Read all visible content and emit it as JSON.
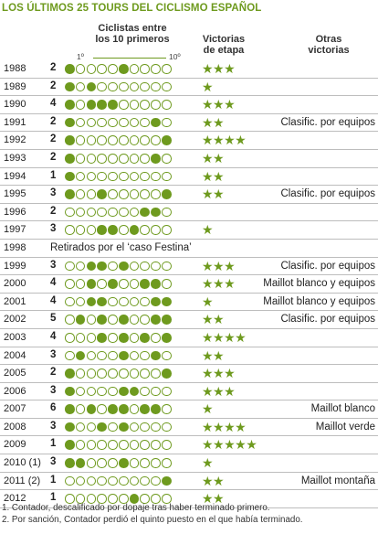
{
  "title": "LOS ÚLTIMOS 25 TOURS DEL CICLISMO ESPAÑOL",
  "headers": {
    "cyclists": "Ciclistas entre\nlos 10 primeros",
    "scale_first": "1º",
    "scale_last": "10º",
    "stage_wins": "Victorias\nde etapa",
    "other_wins": "Otras\nvictorias"
  },
  "rows": [
    {
      "year": "1988",
      "count": "2",
      "positions": [
        1,
        6
      ],
      "stars": "★★★",
      "other": ""
    },
    {
      "year": "1989",
      "count": "2",
      "positions": [
        1,
        3
      ],
      "stars": "★",
      "other": ""
    },
    {
      "year": "1990",
      "count": "4",
      "positions": [
        1,
        3,
        4,
        5
      ],
      "stars": "★★★",
      "other": ""
    },
    {
      "year": "1991",
      "count": "2",
      "positions": [
        1,
        9
      ],
      "stars": "★★",
      "other": "Clasific. por equipos"
    },
    {
      "year": "1992",
      "count": "2",
      "positions": [
        1,
        10
      ],
      "stars": "★★★★",
      "other": ""
    },
    {
      "year": "1993",
      "count": "2",
      "positions": [
        1,
        9
      ],
      "stars": "★★",
      "other": ""
    },
    {
      "year": "1994",
      "count": "1",
      "positions": [
        1
      ],
      "stars": "★★",
      "other": ""
    },
    {
      "year": "1995",
      "count": "3",
      "positions": [
        1,
        4,
        10
      ],
      "stars": "★★",
      "other": "Clasific. por equipos"
    },
    {
      "year": "1996",
      "count": "2",
      "positions": [
        8,
        9
      ],
      "stars": "",
      "other": ""
    },
    {
      "year": "1997",
      "count": "3",
      "positions": [
        4,
        5,
        7
      ],
      "stars": "★",
      "other": ""
    },
    {
      "year": "1998",
      "count": "",
      "positions": [],
      "stars": "",
      "other": "",
      "note": "Retirados por el ‘caso Festina’"
    },
    {
      "year": "1999",
      "count": "3",
      "positions": [
        3,
        4,
        6
      ],
      "stars": "★★★",
      "other": "Clasific. por equipos"
    },
    {
      "year": "2000",
      "count": "4",
      "positions": [
        3,
        5,
        8,
        9
      ],
      "stars": "★★★",
      "other": "Maillot blanco y equipos"
    },
    {
      "year": "2001",
      "count": "4",
      "positions": [
        3,
        4,
        9,
        10
      ],
      "stars": "★",
      "other": "Maillot blanco y equipos"
    },
    {
      "year": "2002",
      "count": "5",
      "positions": [
        2,
        4,
        6,
        9,
        10
      ],
      "stars": "★★",
      "other": "Clasific. por equipos"
    },
    {
      "year": "2003",
      "count": "4",
      "positions": [
        4,
        6,
        8,
        10
      ],
      "stars": "★★★★",
      "other": ""
    },
    {
      "year": "2004",
      "count": "3",
      "positions": [
        2,
        6,
        9
      ],
      "stars": "★★",
      "other": ""
    },
    {
      "year": "2005",
      "count": "2",
      "positions": [
        1,
        10
      ],
      "stars": "★★★",
      "other": ""
    },
    {
      "year": "2006",
      "count": "3",
      "positions": [
        1,
        6,
        7
      ],
      "stars": "★★★",
      "other": ""
    },
    {
      "year": "2007",
      "count": "6",
      "positions": [
        1,
        3,
        5,
        6,
        8,
        9
      ],
      "stars": "★",
      "other": "Maillot blanco"
    },
    {
      "year": "2008",
      "count": "3",
      "positions": [
        1,
        4,
        6
      ],
      "stars": "★★★★",
      "other": "Maillot verde"
    },
    {
      "year": "2009",
      "count": "1",
      "positions": [
        1
      ],
      "stars": "★★★★★",
      "other": ""
    },
    {
      "year": "2010 (1)",
      "count": "3",
      "positions": [
        1,
        2,
        6
      ],
      "stars": "★",
      "other": ""
    },
    {
      "year": "2011 (2)",
      "count": "1",
      "positions": [
        10
      ],
      "stars": "★★",
      "other": "Maillot montaña"
    },
    {
      "year": "2012",
      "count": "1",
      "positions": [
        7
      ],
      "stars": "★★",
      "other": ""
    }
  ],
  "footnotes": [
    "1. Contador, descalificado por dopaje tras haber terminado primero.",
    "2. Por sanción, Contador perdió el quinto puesto en el que había terminado."
  ],
  "colors": {
    "accent": "#6e9a1e"
  }
}
